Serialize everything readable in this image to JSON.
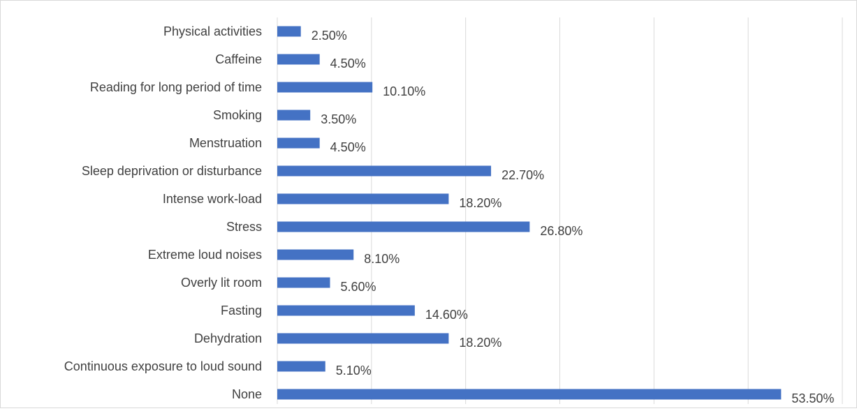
{
  "chart_data": {
    "type": "bar",
    "orientation": "horizontal",
    "categories": [
      "Physical activities",
      "Caffeine",
      "Reading for long period of time",
      "Smoking",
      "Menstruation",
      "Sleep deprivation or disturbance",
      "Intense work-load",
      "Stress",
      "Extreme loud noises",
      "Overly lit room",
      "Fasting",
      "Dehydration",
      "Continuous exposure to loud sound",
      "None"
    ],
    "values": [
      2.5,
      4.5,
      10.1,
      3.5,
      4.5,
      22.7,
      18.2,
      26.8,
      8.1,
      5.6,
      14.6,
      18.2,
      5.1,
      53.5
    ],
    "data_labels": [
      "2.50%",
      "4.50%",
      "10.10%",
      "3.50%",
      "4.50%",
      "22.70%",
      "18.20%",
      "26.80%",
      "8.10%",
      "5.60%",
      "14.60%",
      "18.20%",
      "5.10%",
      "53.50%"
    ],
    "xlim": [
      0,
      60
    ],
    "x_unit": "percent",
    "grid": "vertical",
    "legend": "none",
    "bar_color": "#4472c4",
    "grid_color": "#d9d9d9",
    "text_color": "#404040"
  }
}
